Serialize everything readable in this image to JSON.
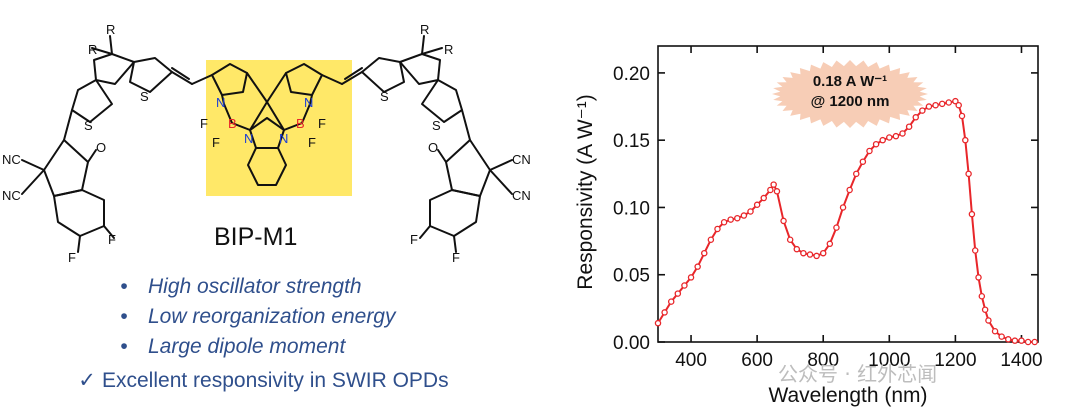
{
  "molecule": {
    "name": "BIP-M1",
    "substituent_R": "R",
    "sulfur": "S",
    "nitrogen": "N",
    "boron": "B",
    "fluorine": "F",
    "oxygen": "O",
    "cyano": "NC",
    "cyano_right": "CN",
    "core_highlight_color": "#ffe44d"
  },
  "features": [
    "High oscillator strength",
    "Low reorganization energy",
    "Large dipole moment"
  ],
  "bullet_symbol": "•",
  "check_symbol": "✓",
  "highlight": "Excellent responsivity in SWIR OPDs",
  "watermark": "公众号 · 红外芯闻",
  "chart_data": {
    "type": "line",
    "xlabel": "Wavelength (nm)",
    "ylabel": "Responsivity (A W⁻¹)",
    "xlim": [
      300,
      1450
    ],
    "ylim": [
      0,
      0.22
    ],
    "xticks": [
      400,
      600,
      800,
      1000,
      1200,
      1400
    ],
    "yticks": [
      "0.00",
      "0.05",
      "0.10",
      "0.15",
      "0.20"
    ],
    "series_color": "#e8262a",
    "annotation": {
      "line1": "0.18 A W⁻¹",
      "line2": "@ 1200 nm",
      "fill": "#f7cdb6"
    },
    "x": [
      300,
      320,
      340,
      360,
      380,
      400,
      420,
      440,
      460,
      480,
      500,
      520,
      540,
      560,
      580,
      600,
      620,
      640,
      650,
      660,
      680,
      700,
      720,
      740,
      760,
      780,
      800,
      820,
      840,
      860,
      880,
      900,
      920,
      940,
      960,
      980,
      1000,
      1020,
      1040,
      1060,
      1080,
      1100,
      1120,
      1140,
      1160,
      1180,
      1200,
      1210,
      1220,
      1230,
      1240,
      1250,
      1260,
      1270,
      1280,
      1290,
      1300,
      1320,
      1340,
      1360,
      1380,
      1400,
      1420,
      1440
    ],
    "values": [
      0.014,
      0.022,
      0.03,
      0.036,
      0.042,
      0.048,
      0.056,
      0.066,
      0.076,
      0.084,
      0.089,
      0.091,
      0.092,
      0.094,
      0.097,
      0.102,
      0.107,
      0.113,
      0.117,
      0.112,
      0.09,
      0.076,
      0.069,
      0.066,
      0.065,
      0.064,
      0.066,
      0.073,
      0.085,
      0.1,
      0.113,
      0.125,
      0.134,
      0.142,
      0.147,
      0.15,
      0.152,
      0.153,
      0.155,
      0.16,
      0.167,
      0.172,
      0.175,
      0.176,
      0.177,
      0.178,
      0.179,
      0.176,
      0.168,
      0.15,
      0.125,
      0.095,
      0.068,
      0.048,
      0.034,
      0.024,
      0.016,
      0.008,
      0.004,
      0.002,
      0.001,
      0.001,
      0.0,
      0.0
    ]
  }
}
